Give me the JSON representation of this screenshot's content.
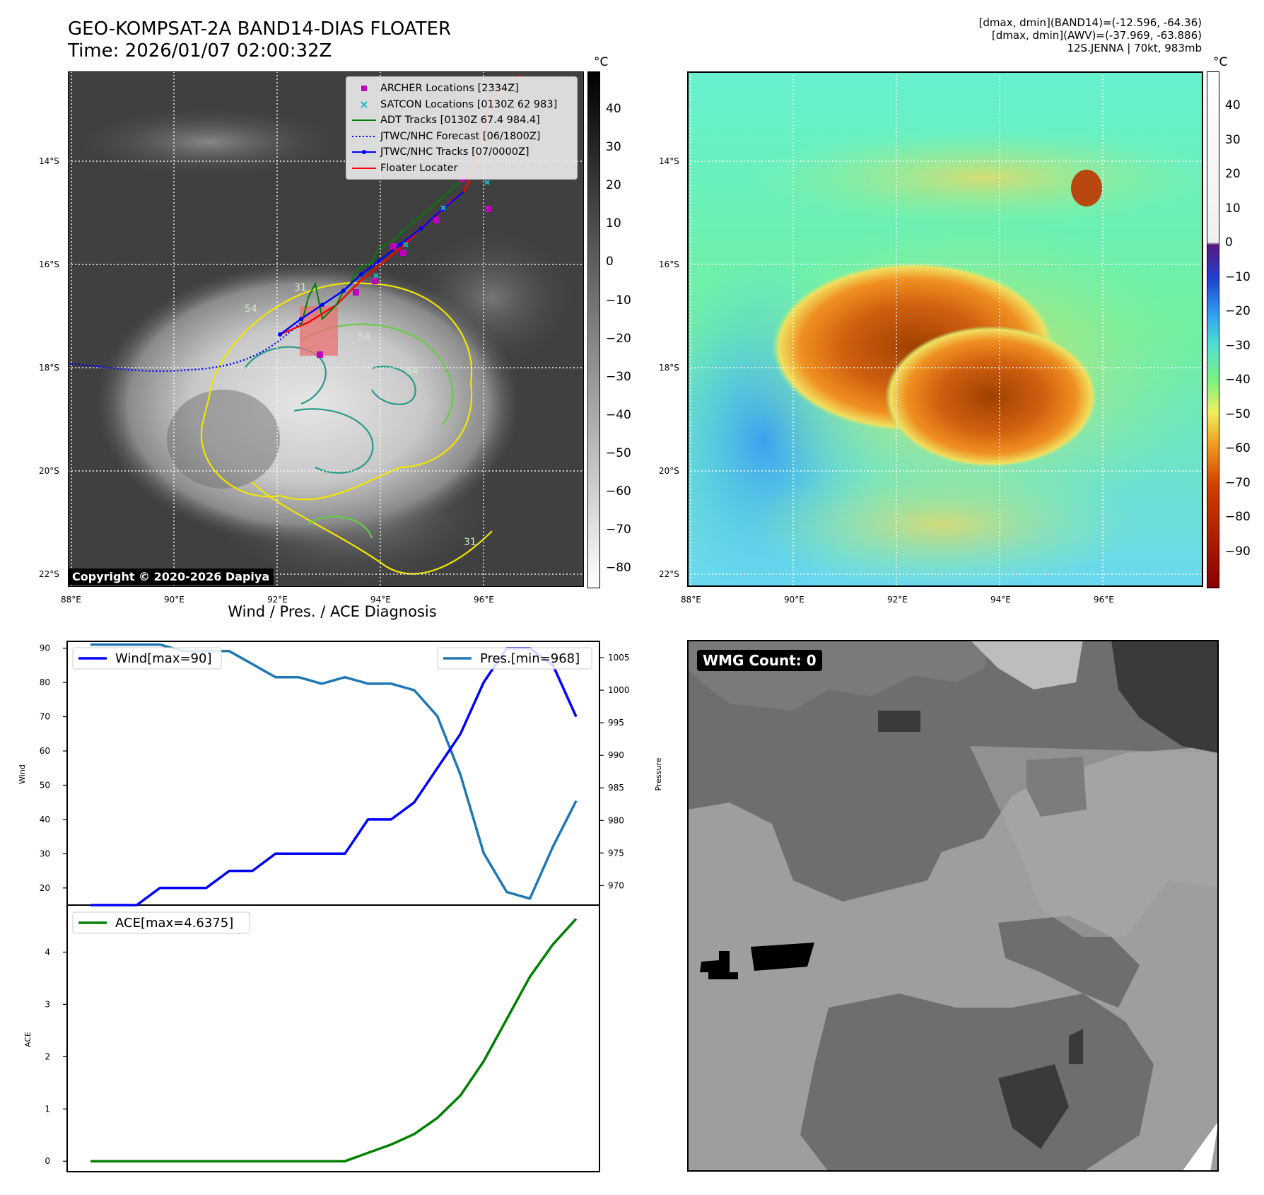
{
  "header": {
    "title_line1": "GEO-KOMPSAT-2A BAND14-DIAS FLOATER",
    "title_line2": "Time: 2026/01/07 02:00:32Z",
    "info_line1": "[dmax, dmin](BAND14)=(-12.596, -64.36)",
    "info_line2": "[dmax, dmin](AWV)=(-37.969, -63.886)",
    "info_line3": "12S.JENNA | 70kt, 983mb"
  },
  "map": {
    "lat_labels": [
      "14°S",
      "16°S",
      "18°S",
      "20°S",
      "22°S"
    ],
    "lon_labels": [
      "88°E",
      "90°E",
      "92°E",
      "94°E",
      "96°E"
    ],
    "copyright": "Copyright © 2020-2026 Dapiya",
    "contour_labels": [
      "31",
      "54",
      "54",
      "54",
      "31"
    ],
    "legend": [
      {
        "label": "ARCHER Locations [2334Z]",
        "color": "#bf00bf",
        "marker": "square"
      },
      {
        "label": "SATCON Locations [0130Z 62 983]",
        "color": "#17becf",
        "marker": "x"
      },
      {
        "label": "ADT Tracks [0130Z 67.4 984.4]",
        "color": "#008000",
        "marker": "line"
      },
      {
        "label": "JTWC/NHC Forecast [06/1800Z]",
        "color": "#0000ff",
        "marker": "dotted"
      },
      {
        "label": "JTWC/NHC Tracks [07/0000Z]",
        "color": "#0000ff",
        "marker": "line-dot"
      },
      {
        "label": "Floater Locater",
        "color": "#ff0000",
        "marker": "line"
      }
    ]
  },
  "colorbar_left": {
    "unit": "°C",
    "ticks": [
      "40",
      "30",
      "20",
      "10",
      "0",
      "−10",
      "−20",
      "−30",
      "−40",
      "−50",
      "−60",
      "−70",
      "−80"
    ]
  },
  "colorbar_right": {
    "unit": "°C",
    "ticks": [
      "40",
      "30",
      "20",
      "10",
      "0",
      "−10",
      "−20",
      "−30",
      "−40",
      "−50",
      "−60",
      "−70",
      "−80",
      "−90"
    ]
  },
  "wmg": {
    "badge": "WMG Count: 0"
  },
  "chart_data": [
    {
      "type": "line",
      "title": "Wind / Pres. / ACE Diagnosis",
      "ylabel": "Wind",
      "y2label": "Pressure",
      "x": [
        0,
        1,
        2,
        3,
        4,
        5,
        6,
        7,
        8,
        9,
        10,
        11,
        12,
        13,
        14,
        15,
        16,
        17,
        18,
        19,
        20,
        21
      ],
      "ylim": [
        15,
        92
      ],
      "y2lim": [
        967,
        1007.5
      ],
      "yticks": [
        "20",
        "30",
        "40",
        "50",
        "60",
        "70",
        "80",
        "90"
      ],
      "y2ticks": [
        "970",
        "975",
        "980",
        "985",
        "990",
        "995",
        "1000",
        "1005"
      ],
      "series": [
        {
          "name": "Wind[max=90]",
          "axis": "left",
          "color": "#0000ff",
          "values": [
            15,
            15,
            15,
            20,
            20,
            20,
            25,
            25,
            30,
            30,
            30,
            30,
            40,
            40,
            45,
            55,
            65,
            80,
            90,
            90,
            85,
            70
          ]
        },
        {
          "name": "Pres.[min=968]",
          "axis": "right",
          "color": "#1f77b4",
          "values": [
            1007,
            1007,
            1007,
            1007,
            1006,
            1006,
            1006,
            1004,
            1002,
            1002,
            1001,
            1002,
            1001,
            1001,
            1000,
            996,
            987,
            975,
            969,
            968,
            976,
            983
          ]
        }
      ]
    },
    {
      "type": "line",
      "ylabel": "ACE",
      "x": [
        0,
        1,
        2,
        3,
        4,
        5,
        6,
        7,
        8,
        9,
        10,
        11,
        12,
        13,
        14,
        15,
        16,
        17,
        18,
        19,
        20,
        21
      ],
      "ylim": [
        -0.2,
        4.9
      ],
      "yticks": [
        "0",
        "1",
        "2",
        "3",
        "4"
      ],
      "series": [
        {
          "name": "ACE[max=4.6375]",
          "color": "#008000",
          "values": [
            0,
            0,
            0,
            0,
            0,
            0,
            0,
            0,
            0,
            0,
            0,
            0,
            0.16,
            0.32,
            0.52,
            0.83,
            1.26,
            1.91,
            2.72,
            3.53,
            4.15,
            4.6375
          ]
        }
      ]
    }
  ]
}
